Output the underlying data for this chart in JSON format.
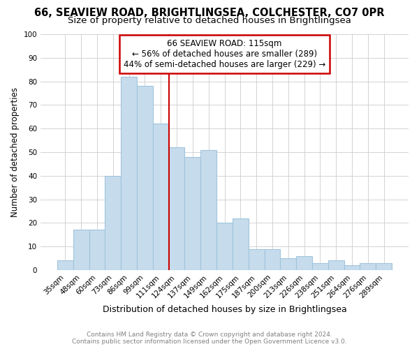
{
  "title1": "66, SEAVIEW ROAD, BRIGHTLINGSEA, COLCHESTER, CO7 0PR",
  "title2": "Size of property relative to detached houses in Brightlingsea",
  "xlabel": "Distribution of detached houses by size in Brightlingsea",
  "ylabel": "Number of detached properties",
  "categories": [
    "35sqm",
    "48sqm",
    "60sqm",
    "73sqm",
    "86sqm",
    "99sqm",
    "111sqm",
    "124sqm",
    "137sqm",
    "149sqm",
    "162sqm",
    "175sqm",
    "187sqm",
    "200sqm",
    "213sqm",
    "226sqm",
    "238sqm",
    "251sqm",
    "264sqm",
    "276sqm",
    "289sqm"
  ],
  "values": [
    4,
    17,
    17,
    40,
    82,
    78,
    62,
    52,
    48,
    51,
    20,
    22,
    9,
    9,
    5,
    6,
    3,
    4,
    2,
    3,
    3
  ],
  "bar_color": "#c6dcec",
  "bar_edge_color": "#a0c4dc",
  "red_line_x": 6.5,
  "annotation_title": "66 SEAVIEW ROAD: 115sqm",
  "annotation_line1": "← 56% of detached houses are smaller (289)",
  "annotation_line2": "44% of semi-detached houses are larger (229) →",
  "footer1": "Contains HM Land Registry data © Crown copyright and database right 2024.",
  "footer2": "Contains public sector information licensed under the Open Government Licence v3.0.",
  "ylim": [
    0,
    100
  ],
  "yticks": [
    0,
    10,
    20,
    30,
    40,
    50,
    60,
    70,
    80,
    90,
    100
  ],
  "bg_color": "#ffffff",
  "grid_color": "#cccccc",
  "title1_fontsize": 10.5,
  "title2_fontsize": 9.5,
  "annotation_box_edge": "#cc0000",
  "red_line_color": "#cc0000",
  "annot_fontsize": 8.5,
  "axis_fontsize": 8,
  "tick_fontsize": 7.5,
  "footer_fontsize": 6.5,
  "ylabel_fontsize": 8.5,
  "xlabel_fontsize": 9
}
